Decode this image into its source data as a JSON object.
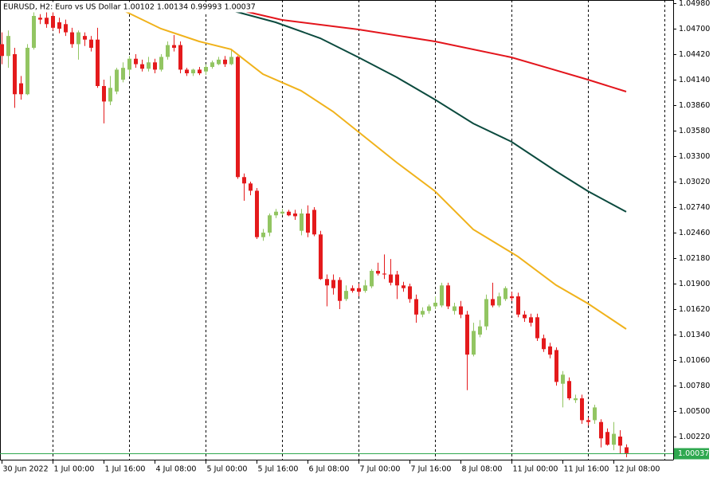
{
  "chart_data": {
    "type": "candlestick",
    "title": "EURUSD, H2:  Euro vs US Dollar  1.00102 1.00134 0.99993 1.00037",
    "up_color": "#92c562",
    "down_color": "#e41a1c",
    "open": [
      1.0453,
      1.044,
      1.0442,
      1.041,
      1.0398,
      1.0449,
      1.0482,
      1.0482,
      1.0484,
      1.0477,
      1.0475,
      1.0466,
      1.0453,
      1.0462,
      1.0458,
      1.0458,
      1.0407,
      1.039,
      1.0401,
      1.0414,
      1.0425,
      1.0437,
      1.0431,
      1.0426,
      1.0433,
      1.0425,
      1.0439,
      1.0452,
      1.0452,
      1.0425,
      1.0421,
      1.0425,
      1.0423,
      1.0428,
      1.0431,
      1.0436,
      1.0431,
      1.0439,
      1.0307,
      1.03,
      1.0292,
      1.0241,
      1.0246,
      1.0265,
      1.0267,
      1.0269,
      1.0267,
      1.0248,
      1.0267,
      1.0271,
      1.0244,
      1.0195,
      1.0194,
      1.0194,
      1.0173,
      1.0185,
      1.0185,
      1.0182,
      1.0187,
      1.0204,
      1.0201,
      1.02,
      1.02,
      1.0188,
      1.0187,
      1.0173,
      1.0156,
      1.016,
      1.0165,
      1.0166,
      1.0188,
      1.016,
      1.0165,
      1.0156,
      1.0112,
      1.0134,
      1.0143,
      1.0173,
      1.0166,
      1.0173,
      1.0176,
      1.0176,
      1.0156,
      1.0153,
      1.0153,
      1.013,
      1.0121,
      1.0117,
      1.008,
      1.0083,
      1.0062,
      1.0064,
      1.004,
      1.004,
      1.0038,
      1.0027,
      1.0013,
      1.0022,
      1.00102
    ],
    "high": [
      1.0466,
      1.0468,
      1.0449,
      1.0418,
      1.0453,
      1.0488,
      1.0486,
      1.0488,
      1.0488,
      1.0482,
      1.048,
      1.0471,
      1.0468,
      1.0466,
      1.0462,
      1.0471,
      1.0414,
      1.0418,
      1.0427,
      1.0433,
      1.044,
      1.0442,
      1.0436,
      1.0439,
      1.0437,
      1.0442,
      1.0456,
      1.0463,
      1.0456,
      1.0427,
      1.0426,
      1.0428,
      1.0431,
      1.0435,
      1.0439,
      1.044,
      1.0447,
      1.044,
      1.0311,
      1.0302,
      1.0295,
      1.025,
      1.0267,
      1.0272,
      1.0272,
      1.0271,
      1.0271,
      1.0272,
      1.0276,
      1.0274,
      1.0248,
      1.02,
      1.02,
      1.0197,
      1.0188,
      1.0188,
      1.019,
      1.0194,
      1.0206,
      1.0213,
      1.0222,
      1.0217,
      1.0204,
      1.0192,
      1.019,
      1.0178,
      1.0164,
      1.0167,
      1.0176,
      1.0191,
      1.0191,
      1.0169,
      1.0171,
      1.016,
      1.0147,
      1.015,
      1.0178,
      1.0191,
      1.018,
      1.0187,
      1.0181,
      1.018,
      1.016,
      1.0157,
      1.0157,
      1.0134,
      1.0125,
      1.012,
      1.0094,
      1.0087,
      1.0068,
      1.0068,
      1.0043,
      1.0057,
      1.0041,
      1.0031,
      1.0038,
      1.0029,
      1.00134
    ],
    "low": [
      1.0431,
      1.0427,
      1.0383,
      1.0392,
      1.0397,
      1.0447,
      1.0475,
      1.0471,
      1.0468,
      1.0465,
      1.0462,
      1.0449,
      1.0436,
      1.0451,
      1.0445,
      1.0405,
      1.0366,
      1.0386,
      1.0398,
      1.0411,
      1.0418,
      1.0427,
      1.0423,
      1.0423,
      1.0421,
      1.0423,
      1.0436,
      1.0445,
      1.0421,
      1.0418,
      1.0418,
      1.0419,
      1.0419,
      1.0426,
      1.043,
      1.0428,
      1.043,
      1.0305,
      1.0281,
      1.0287,
      1.0239,
      1.0237,
      1.0242,
      1.0262,
      1.0265,
      1.0264,
      1.026,
      1.0243,
      1.0241,
      1.0242,
      1.0194,
      1.0165,
      1.0178,
      1.0162,
      1.0171,
      1.018,
      1.0176,
      1.018,
      1.0185,
      1.0199,
      1.0195,
      1.0188,
      1.0173,
      1.0181,
      1.0169,
      1.0147,
      1.0153,
      1.0157,
      1.0162,
      1.0164,
      1.0162,
      1.0156,
      1.0152,
      1.0073,
      1.011,
      1.0131,
      1.0139,
      1.0164,
      1.0164,
      1.0171,
      1.0171,
      1.0153,
      1.0148,
      1.0143,
      1.0127,
      1.0115,
      1.0108,
      1.0078,
      1.0054,
      1.0062,
      1.0059,
      1.0036,
      1.0034,
      1.0036,
      1.001,
      1.0012,
      1.0007,
      1.0003,
      0.99993
    ],
    "close": [
      1.044,
      1.0462,
      1.0398,
      1.0398,
      1.0449,
      1.0484,
      1.048,
      1.0475,
      1.0471,
      1.047,
      1.0466,
      1.0453,
      1.0466,
      1.0458,
      1.0449,
      1.0407,
      1.039,
      1.0405,
      1.0425,
      1.0427,
      1.0437,
      1.0431,
      1.0426,
      1.0433,
      1.0425,
      1.0439,
      1.0452,
      1.0449,
      1.0425,
      1.0421,
      1.0425,
      1.0421,
      1.0428,
      1.0433,
      1.0436,
      1.0431,
      1.0439,
      1.0307,
      1.03,
      1.0292,
      1.0241,
      1.0246,
      1.0265,
      1.0269,
      1.0269,
      1.0265,
      1.0264,
      1.0267,
      1.0246,
      1.0244,
      1.0195,
      1.0188,
      1.0185,
      1.0171,
      1.0182,
      1.0182,
      1.0181,
      1.0188,
      1.0204,
      1.0201,
      1.02,
      1.0191,
      1.0188,
      1.0185,
      1.0173,
      1.0156,
      1.016,
      1.0165,
      1.0169,
      1.0188,
      1.0165,
      1.0165,
      1.0156,
      1.0112,
      1.0138,
      1.0143,
      1.0173,
      1.0166,
      1.0176,
      1.0185,
      1.0174,
      1.0156,
      1.0152,
      1.0147,
      1.013,
      1.0118,
      1.0112,
      1.0082,
      1.009,
      1.0064,
      1.0064,
      1.004,
      1.0038,
      1.0054,
      1.002,
      1.0013,
      1.0025,
      1.0012,
      1.00037
    ],
    "series": [
      {
        "color": "#e3151c",
        "x": [
          33,
          38,
          44,
          56,
          68,
          80,
          86,
          92,
          98
        ],
        "values": [
          1.04963,
          1.04893,
          1.04796,
          1.04691,
          1.0456,
          1.04385,
          1.04263,
          1.0414,
          1.04009
        ]
      },
      {
        "color": "#0b4a3e",
        "x": [
          36,
          43,
          50,
          56,
          62,
          68,
          74,
          80,
          87,
          92,
          98
        ],
        "values": [
          1.04901,
          1.0477,
          1.04595,
          1.04385,
          1.04166,
          1.03921,
          1.03659,
          1.03458,
          1.03134,
          1.02915,
          1.02688
        ]
      },
      {
        "color": "#f0b21b",
        "x": [
          17,
          25,
          31,
          36,
          41,
          47,
          52,
          57,
          62,
          68,
          74,
          81,
          87,
          92,
          98
        ],
        "values": [
          1.04971,
          1.047,
          1.0456,
          1.04473,
          1.04201,
          1.04018,
          1.0379,
          1.0351,
          1.0323,
          1.02915,
          1.02495,
          1.02198,
          1.01883,
          1.01681,
          1.01401
        ]
      }
    ],
    "price_line": {
      "value": 1.00037,
      "label": "1.00037",
      "color": "#2fa84f"
    },
    "xlim": [
      -0.25,
      105.375
    ],
    "ylim": [
      0.99966,
      1.05015
    ],
    "xticks": [
      {
        "value": 0,
        "label": "30 Jun 2022"
      },
      {
        "value": 8,
        "label": "1 Jul 00:00"
      },
      {
        "value": 16,
        "label": "1 Jul 16:00"
      },
      {
        "value": 24,
        "label": "4 Jul 08:00"
      },
      {
        "value": 32,
        "label": "5 Jul 00:00"
      },
      {
        "value": 40,
        "label": "5 Jul 16:00"
      },
      {
        "value": 48,
        "label": "6 Jul 08:00"
      },
      {
        "value": 56,
        "label": "7 Jul 00:00"
      },
      {
        "value": 64,
        "label": "7 Jul 16:00"
      },
      {
        "value": 72,
        "label": "8 Jul 08:00"
      },
      {
        "value": 80,
        "label": "11 Jul 00:00"
      },
      {
        "value": 88,
        "label": "11 Jul 16:00"
      },
      {
        "value": 96,
        "label": "12 Jul 08:00"
      }
    ],
    "vgrid": [
      8,
      20,
      32,
      44,
      56,
      68,
      80,
      92,
      104
    ],
    "yticks": [
      {
        "value": 1.0498,
        "label": "1.04980"
      },
      {
        "value": 1.047,
        "label": "1.04700"
      },
      {
        "value": 1.0442,
        "label": "1.04420"
      },
      {
        "value": 1.0414,
        "label": "1.04140"
      },
      {
        "value": 1.0386,
        "label": "1.03860"
      },
      {
        "value": 1.0358,
        "label": "1.03580"
      },
      {
        "value": 1.033,
        "label": "1.03300"
      },
      {
        "value": 1.0302,
        "label": "1.03020"
      },
      {
        "value": 1.0274,
        "label": "1.02740"
      },
      {
        "value": 1.0246,
        "label": "1.02460"
      },
      {
        "value": 1.0218,
        "label": "1.02180"
      },
      {
        "value": 1.019,
        "label": "1.01900"
      },
      {
        "value": 1.0162,
        "label": "1.01620"
      },
      {
        "value": 1.0134,
        "label": "1.01340"
      },
      {
        "value": 1.0106,
        "label": "1.01060"
      },
      {
        "value": 1.0078,
        "label": "1.00780"
      },
      {
        "value": 1.005,
        "label": "1.00500"
      },
      {
        "value": 1.0022,
        "label": "1.00220"
      }
    ]
  }
}
